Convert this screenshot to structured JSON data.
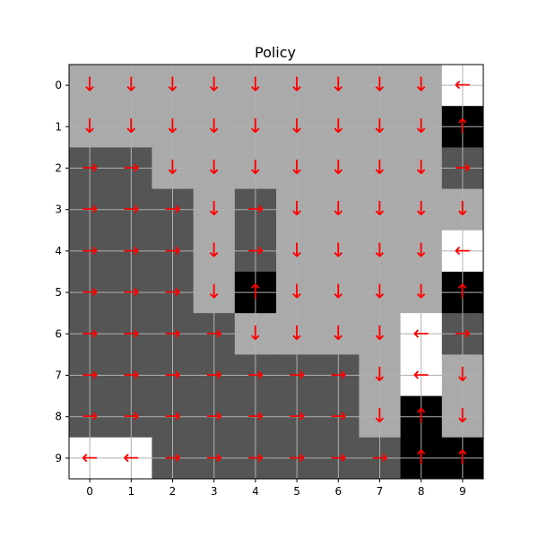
{
  "chart_data": {
    "type": "heatmap",
    "title": "Policy",
    "xlabel": "",
    "ylabel": "",
    "x_ticks": [
      "0",
      "1",
      "2",
      "3",
      "4",
      "5",
      "6",
      "7",
      "8",
      "9"
    ],
    "y_ticks": [
      "0",
      "1",
      "2",
      "3",
      "4",
      "5",
      "6",
      "7",
      "8",
      "9"
    ],
    "grid": true,
    "cell_colors": {
      "W": "#ffffff",
      "L": "#aaaaaa",
      "D": "#555555",
      "K": "#000000"
    },
    "arrow_color": "#ff0000",
    "arrow_glyphs": {
      "U": "↑",
      "D": "↓",
      "L": "←",
      "R": "→"
    },
    "cells": [
      [
        "L",
        "L",
        "L",
        "L",
        "L",
        "L",
        "L",
        "L",
        "L",
        "W"
      ],
      [
        "L",
        "L",
        "L",
        "L",
        "L",
        "L",
        "L",
        "L",
        "L",
        "K"
      ],
      [
        "D",
        "D",
        "L",
        "L",
        "L",
        "L",
        "L",
        "L",
        "L",
        "D"
      ],
      [
        "D",
        "D",
        "D",
        "L",
        "D",
        "L",
        "L",
        "L",
        "L",
        "L"
      ],
      [
        "D",
        "D",
        "D",
        "L",
        "D",
        "L",
        "L",
        "L",
        "L",
        "W"
      ],
      [
        "D",
        "D",
        "D",
        "L",
        "K",
        "L",
        "L",
        "L",
        "L",
        "K"
      ],
      [
        "D",
        "D",
        "D",
        "D",
        "L",
        "L",
        "L",
        "L",
        "W",
        "D"
      ],
      [
        "D",
        "D",
        "D",
        "D",
        "D",
        "D",
        "D",
        "L",
        "W",
        "L"
      ],
      [
        "D",
        "D",
        "D",
        "D",
        "D",
        "D",
        "D",
        "L",
        "K",
        "L"
      ],
      [
        "W",
        "W",
        "D",
        "D",
        "D",
        "D",
        "D",
        "D",
        "K",
        "K"
      ]
    ],
    "policy": [
      [
        "D",
        "D",
        "D",
        "D",
        "D",
        "D",
        "D",
        "D",
        "D",
        "L"
      ],
      [
        "D",
        "D",
        "D",
        "D",
        "D",
        "D",
        "D",
        "D",
        "D",
        "U"
      ],
      [
        "R",
        "R",
        "D",
        "D",
        "D",
        "D",
        "D",
        "D",
        "D",
        "R"
      ],
      [
        "R",
        "R",
        "R",
        "D",
        "R",
        "D",
        "D",
        "D",
        "D",
        "D"
      ],
      [
        "R",
        "R",
        "R",
        "D",
        "R",
        "D",
        "D",
        "D",
        "D",
        "L"
      ],
      [
        "R",
        "R",
        "R",
        "D",
        "U",
        "D",
        "D",
        "D",
        "D",
        "U"
      ],
      [
        "R",
        "R",
        "R",
        "R",
        "D",
        "D",
        "D",
        "D",
        "L",
        "R"
      ],
      [
        "R",
        "R",
        "R",
        "R",
        "R",
        "R",
        "R",
        "D",
        "L",
        "D"
      ],
      [
        "R",
        "R",
        "R",
        "R",
        "R",
        "R",
        "R",
        "D",
        "U",
        "D"
      ],
      [
        "L",
        "L",
        "R",
        "R",
        "R",
        "R",
        "R",
        "R",
        "U",
        "U"
      ]
    ]
  }
}
